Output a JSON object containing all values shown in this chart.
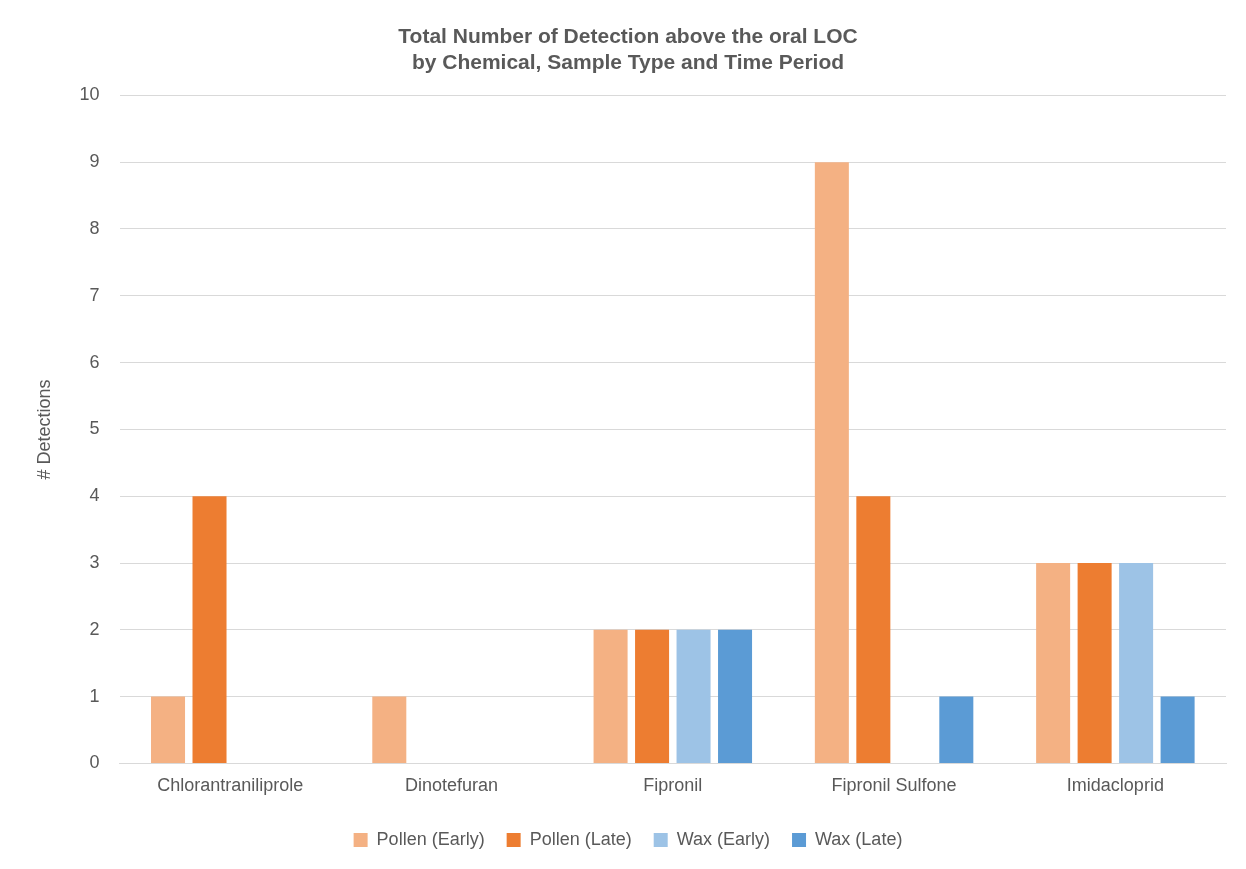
{
  "chart_data": {
    "type": "bar",
    "title": "Total Number of Detection above the oral LOC\nby Chemical, Sample Type and Time Period",
    "ylabel": "# Detections",
    "categories": [
      "Chlorantraniliprole",
      "Dinotefuran",
      "Fipronil",
      "Fipronil Sulfone",
      "Imidacloprid"
    ],
    "series": [
      {
        "name": "Pollen (Early)",
        "color": "#f4b183",
        "values": [
          1,
          1,
          2,
          9,
          3
        ]
      },
      {
        "name": "Pollen (Late)",
        "color": "#ed7d31",
        "values": [
          4,
          0,
          2,
          4,
          3
        ]
      },
      {
        "name": "Wax (Early)",
        "color": "#9dc3e6",
        "values": [
          0,
          0,
          2,
          0,
          3
        ]
      },
      {
        "name": "Wax (Late)",
        "color": "#5b9bd5",
        "values": [
          0,
          0,
          2,
          1,
          1
        ]
      }
    ],
    "ylim": [
      0,
      10
    ],
    "yticks": [
      0,
      1,
      2,
      3,
      4,
      5,
      6,
      7,
      8,
      9,
      10
    ],
    "grid": "y",
    "legend": "bottom"
  }
}
